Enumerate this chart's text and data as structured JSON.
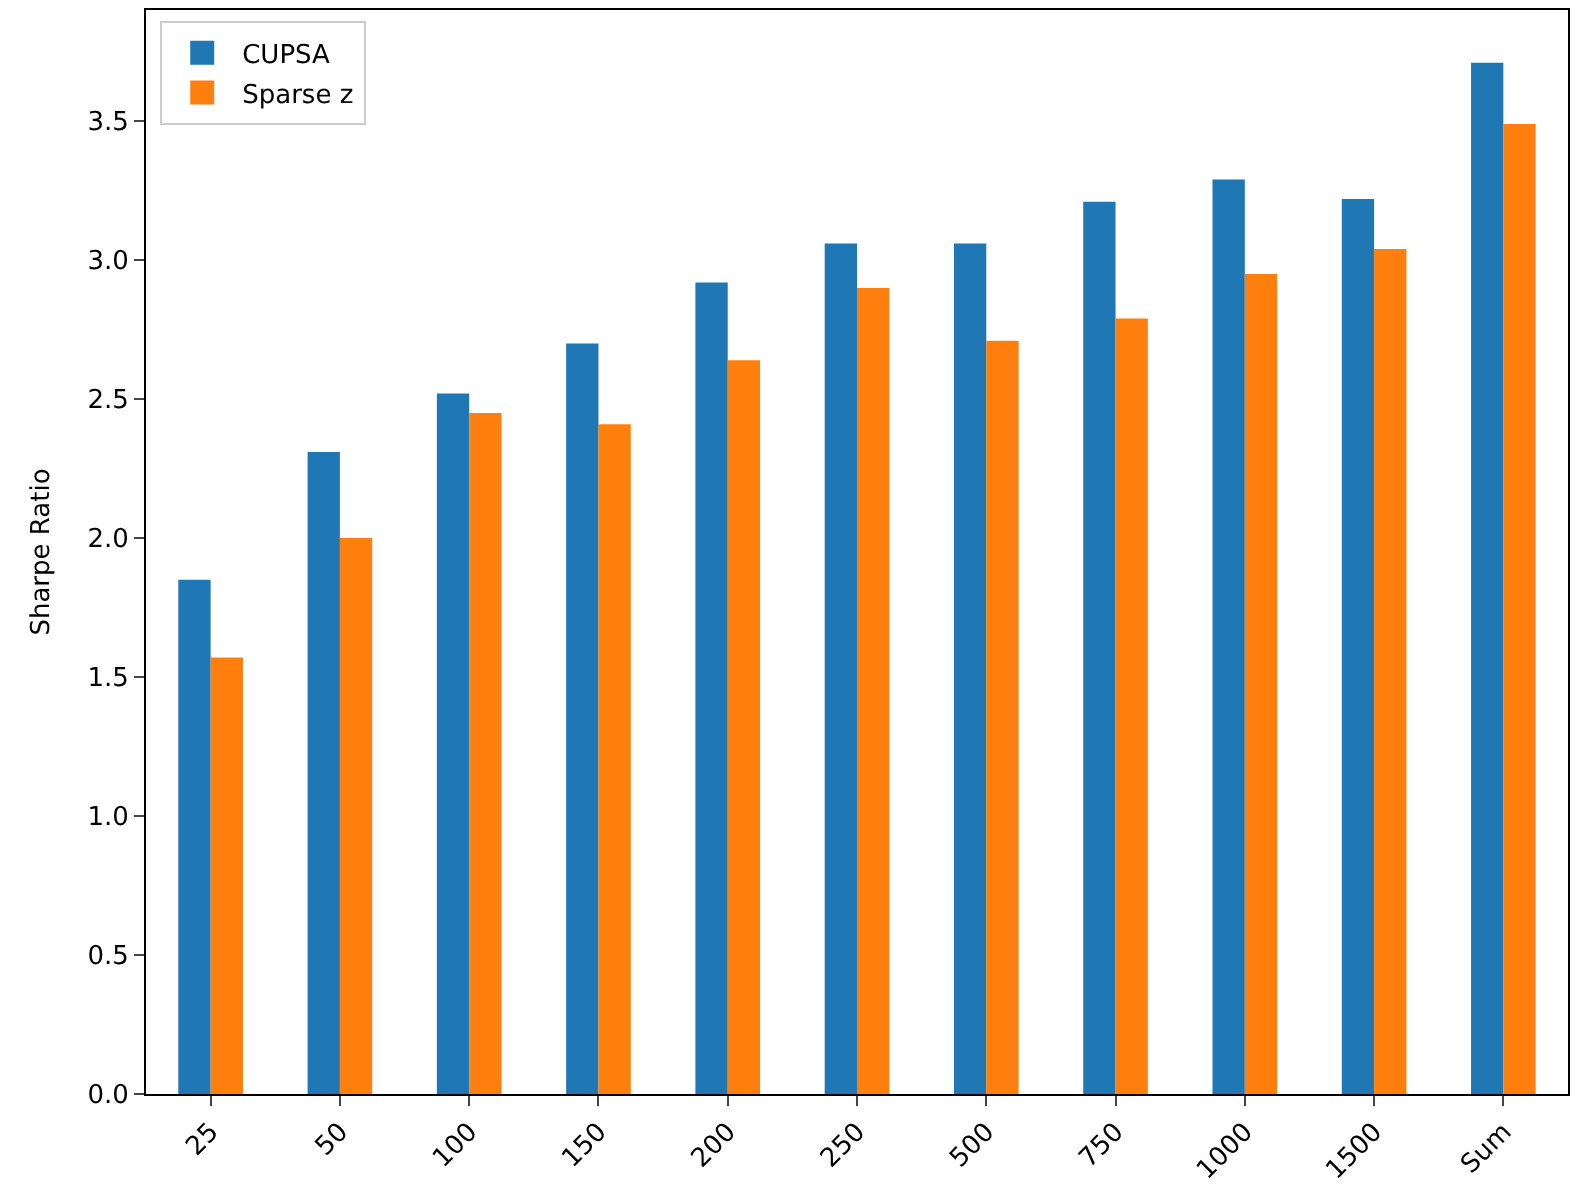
{
  "chart_data": {
    "type": "bar",
    "ylabel": "Sharpe Ratio",
    "categories": [
      "25",
      "50",
      "100",
      "150",
      "200",
      "250",
      "500",
      "750",
      "1000",
      "1500",
      "Sum"
    ],
    "series": [
      {
        "name": "CUPSA",
        "color": "#1f77b4",
        "values": [
          1.85,
          2.31,
          2.52,
          2.7,
          2.92,
          3.06,
          3.06,
          3.21,
          3.29,
          3.22,
          3.71
        ]
      },
      {
        "name": "Sparse z",
        "color": "#ff7f0e",
        "values": [
          1.57,
          2.0,
          2.45,
          2.41,
          2.64,
          2.9,
          2.71,
          2.79,
          2.95,
          3.04,
          3.49
        ]
      }
    ],
    "ylim": [
      0,
      3.9
    ],
    "yticks": [
      {
        "value": 0,
        "label": "0.0"
      },
      {
        "value": 0.5,
        "label": "0.5"
      },
      {
        "value": 1,
        "label": "1.0"
      },
      {
        "value": 1.5,
        "label": "1.5"
      },
      {
        "value": 2,
        "label": "2.0"
      },
      {
        "value": 2.5,
        "label": "2.5"
      },
      {
        "value": 3,
        "label": "3.0"
      },
      {
        "value": 3.5,
        "label": "3.5"
      }
    ],
    "legend": "top left"
  }
}
